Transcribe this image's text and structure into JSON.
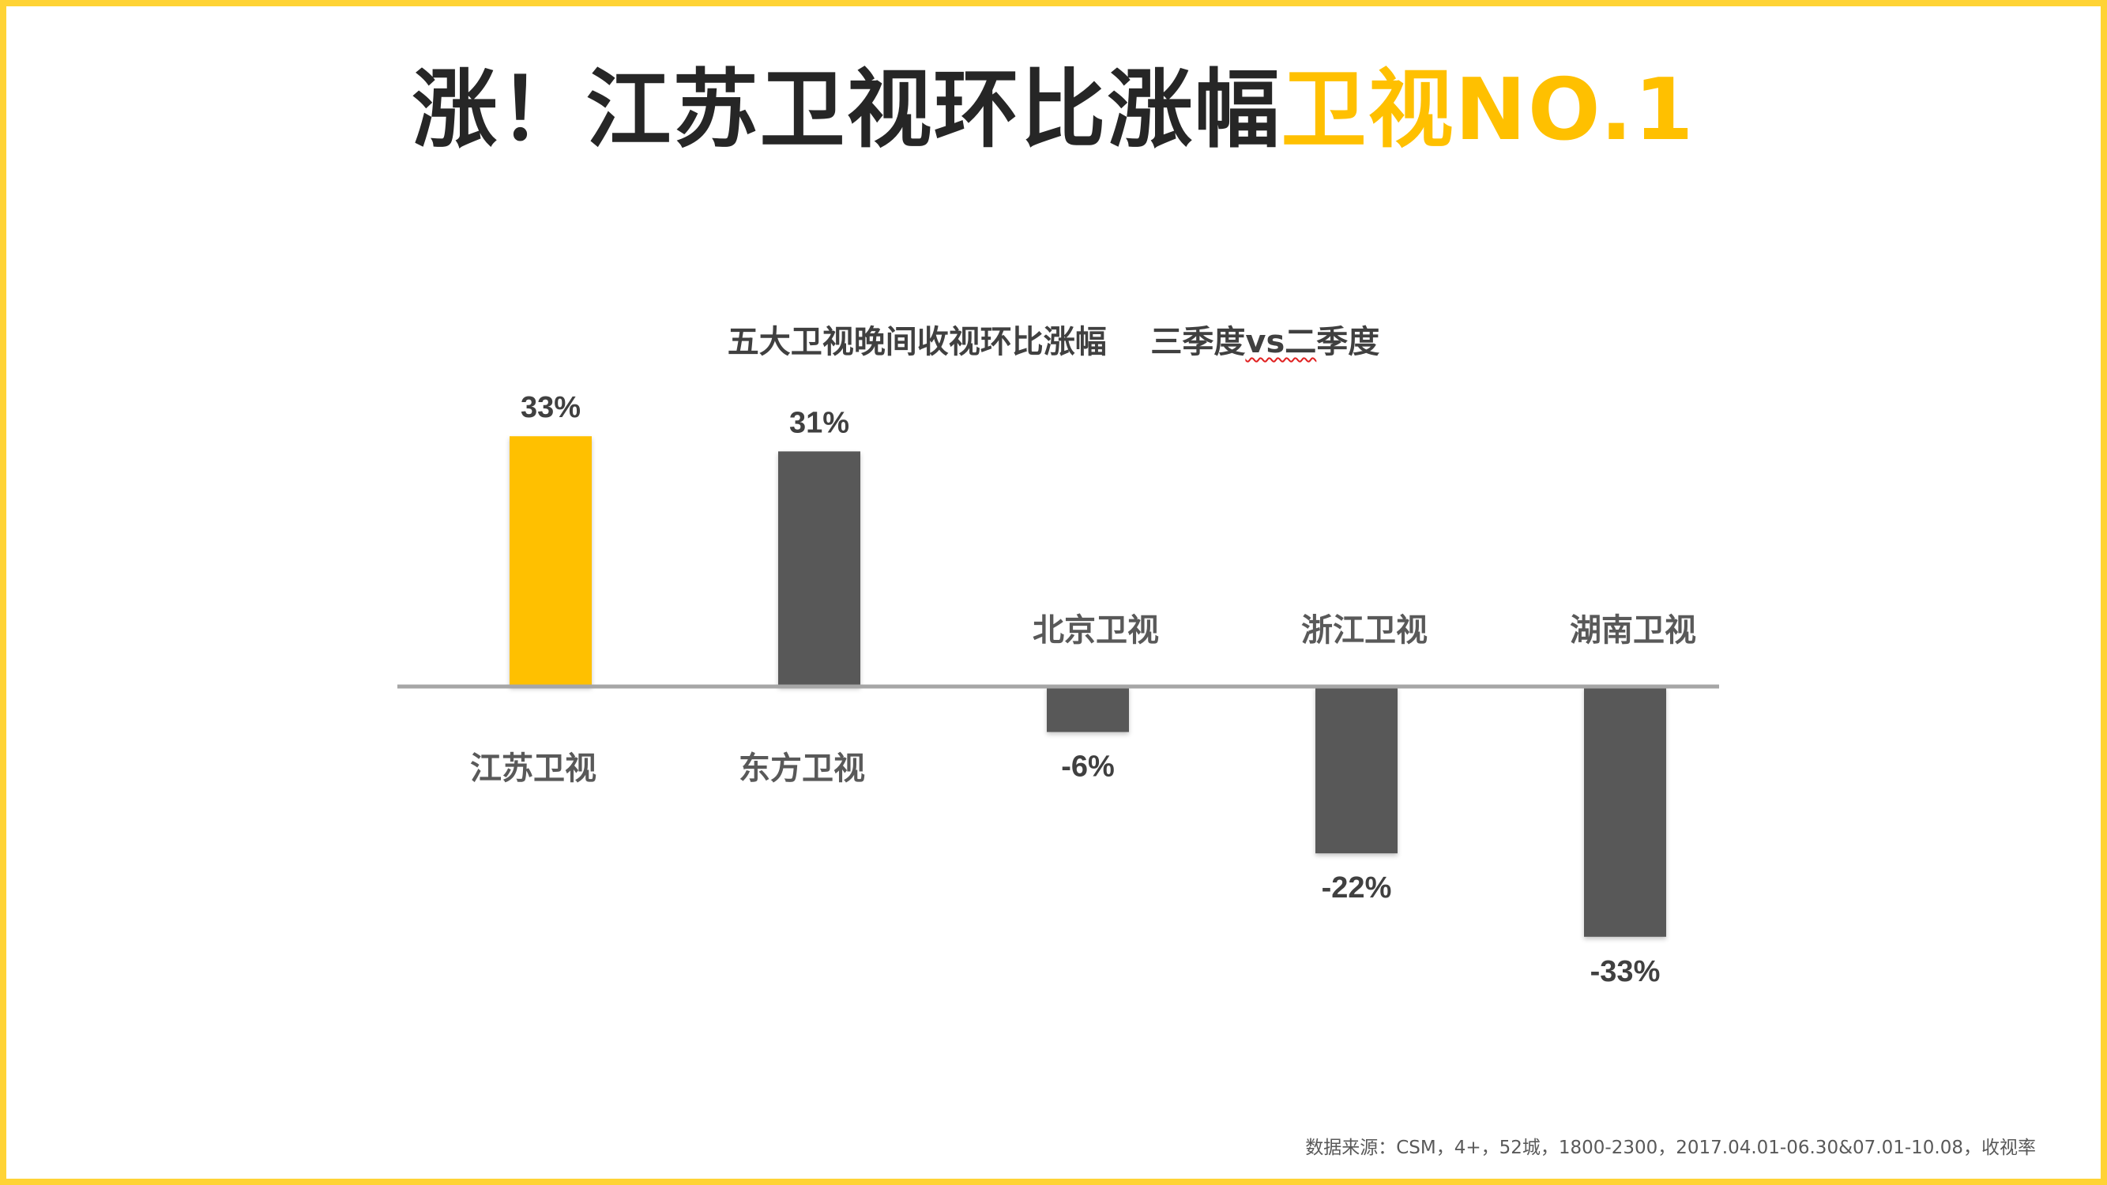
{
  "title": {
    "dark_part": "涨！江苏卫视环比涨幅",
    "accent_part": "卫视NO.1"
  },
  "colors": {
    "frame": "#FFD335",
    "title_dark": "#262626",
    "accent": "#FFC000",
    "bar_highlight": "#FFC000",
    "bar_default": "#595959",
    "baseline": "#A6A6A6",
    "squiggle": "#E02020"
  },
  "subtitle": {
    "part1": "五大卫视晚间收视环比涨幅",
    "part2": "三季度",
    "part3": "vs二",
    "part4": "季度"
  },
  "chart_data": {
    "type": "bar",
    "title": "五大卫视晚间收视环比涨幅    三季度vs二季度",
    "categories": [
      "江苏卫视",
      "东方卫视",
      "北京卫视",
      "浙江卫视",
      "湖南卫视"
    ],
    "values": [
      33,
      31,
      -6,
      -22,
      -33
    ],
    "value_labels": [
      "33%",
      "31%",
      "-6%",
      "-22%",
      "-33%"
    ],
    "unit": "%",
    "highlight_index": 0,
    "ylim": [
      -35,
      35
    ],
    "grid": false,
    "legend": "none"
  },
  "source": "数据来源：CSM，4+，52城，1800-2300，2017.04.01-06.30&07.01-10.08，收视率"
}
